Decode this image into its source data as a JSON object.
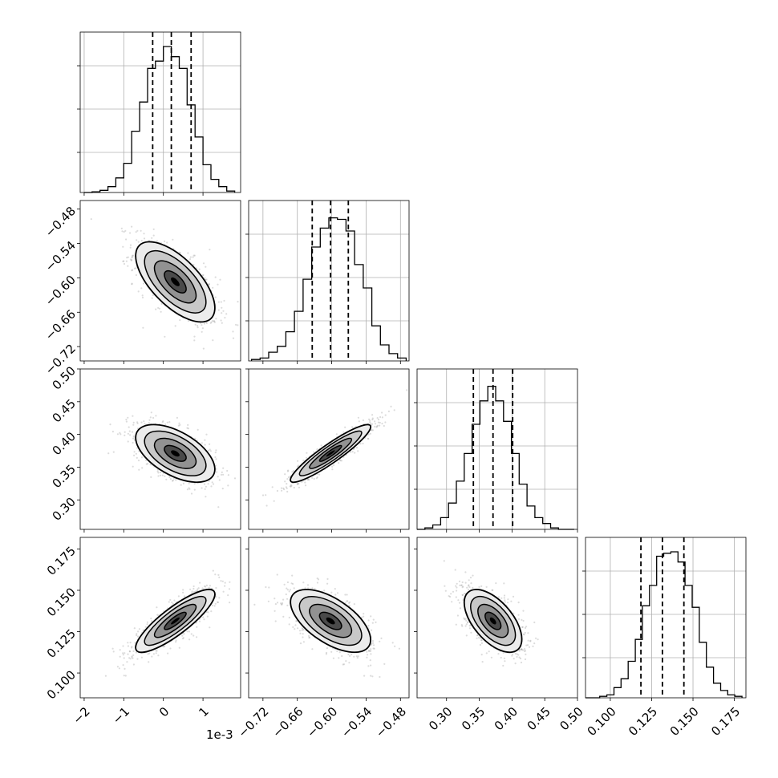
{
  "chart_data": {
    "type": "corner",
    "parameters": 4,
    "axis_offset_label": "1e-3",
    "axes": [
      {
        "range": [
          -2.1,
          1.95
        ],
        "ticks": [
          -2,
          -1,
          0,
          1
        ],
        "tick_labels": [
          "−2",
          "−1",
          "0",
          "1"
        ]
      },
      {
        "range": [
          -0.745,
          -0.465
        ],
        "ticks": [
          -0.72,
          -0.66,
          -0.6,
          -0.54,
          -0.48
        ],
        "tick_labels": [
          "−0.72",
          "−0.66",
          "−0.60",
          "−0.54",
          "−0.48"
        ]
      },
      {
        "range": [
          0.255,
          0.5
        ],
        "ticks": [
          0.3,
          0.35,
          0.4,
          0.45,
          0.5
        ],
        "tick_labels": [
          "0.30",
          "0.35",
          "0.40",
          "0.45",
          "0.50"
        ]
      },
      {
        "range": [
          0.085,
          0.182
        ],
        "ticks": [
          0.1,
          0.125,
          0.15,
          0.175
        ],
        "tick_labels": [
          "0.100",
          "0.125",
          "0.150",
          "0.175"
        ]
      }
    ],
    "marginals": [
      {
        "quantiles": [
          -0.27,
          0.2,
          0.7
        ],
        "bin_edges": [
          -2.0,
          -1.8,
          -1.6,
          -1.4,
          -1.2,
          -1.0,
          -0.8,
          -0.6,
          -0.4,
          -0.2,
          0.0,
          0.2,
          0.4,
          0.6,
          0.8,
          1.0,
          1.2,
          1.4,
          1.6,
          1.8
        ],
        "counts": [
          0.0,
          0.005,
          0.015,
          0.04,
          0.1,
          0.2,
          0.42,
          0.62,
          0.85,
          0.9,
          1.0,
          0.93,
          0.85,
          0.6,
          0.38,
          0.19,
          0.09,
          0.04,
          0.01
        ]
      },
      {
        "quantiles": [
          -0.634,
          -0.602,
          -0.571
        ],
        "bin_edges": [
          -0.74,
          -0.725,
          -0.71,
          -0.695,
          -0.68,
          -0.665,
          -0.65,
          -0.635,
          -0.62,
          -0.605,
          -0.59,
          -0.575,
          -0.56,
          -0.545,
          -0.53,
          -0.515,
          -0.5,
          -0.485,
          -0.47
        ],
        "counts": [
          0.01,
          0.02,
          0.06,
          0.1,
          0.2,
          0.34,
          0.56,
          0.78,
          0.91,
          0.98,
          0.97,
          0.89,
          0.66,
          0.5,
          0.24,
          0.11,
          0.05,
          0.02
        ]
      },
      {
        "quantiles": [
          0.341,
          0.371,
          0.401
        ],
        "bin_edges": [
          0.255,
          0.267,
          0.279,
          0.291,
          0.303,
          0.315,
          0.327,
          0.339,
          0.351,
          0.363,
          0.375,
          0.387,
          0.399,
          0.411,
          0.423,
          0.435,
          0.447,
          0.459,
          0.471,
          0.483,
          0.495
        ],
        "counts": [
          0.0,
          0.01,
          0.03,
          0.08,
          0.18,
          0.33,
          0.52,
          0.72,
          0.88,
          0.98,
          0.88,
          0.74,
          0.52,
          0.31,
          0.16,
          0.08,
          0.04,
          0.01,
          0.0,
          0.0
        ]
      },
      {
        "quantiles": [
          0.1185,
          0.1315,
          0.1445
        ],
        "bin_edges": [
          0.085,
          0.0893,
          0.0936,
          0.0979,
          0.1022,
          0.1065,
          0.1108,
          0.1151,
          0.1194,
          0.1237,
          0.128,
          0.1323,
          0.1366,
          0.1409,
          0.1452,
          0.1495,
          0.1538,
          0.1581,
          0.1624,
          0.1667,
          0.171,
          0.1753,
          0.1796
        ],
        "counts": [
          0.0,
          0.0,
          0.01,
          0.02,
          0.07,
          0.13,
          0.25,
          0.4,
          0.63,
          0.77,
          0.97,
          0.99,
          1.0,
          0.93,
          0.77,
          0.62,
          0.38,
          0.21,
          0.1,
          0.05,
          0.02,
          0.01
        ]
      }
    ],
    "joint": [
      {
        "row": 1,
        "col": 0,
        "center": [
          0.3,
          -0.607
        ],
        "sigma": [
          0.5,
          0.035
        ],
        "rho": -0.65
      },
      {
        "row": 2,
        "col": 0,
        "center": [
          0.3,
          0.371
        ],
        "sigma": [
          0.5,
          0.022
        ],
        "rho": -0.55
      },
      {
        "row": 2,
        "col": 1,
        "center": [
          -0.602,
          0.371
        ],
        "sigma": [
          0.035,
          0.022
        ],
        "rho": 0.92
      },
      {
        "row": 3,
        "col": 0,
        "center": [
          0.3,
          0.1315
        ],
        "sigma": [
          0.5,
          0.0095
        ],
        "rho": 0.85
      },
      {
        "row": 3,
        "col": 1,
        "center": [
          -0.602,
          0.1315
        ],
        "sigma": [
          0.035,
          0.0095
        ],
        "rho": -0.6
      },
      {
        "row": 3,
        "col": 2,
        "center": [
          0.371,
          0.1315
        ],
        "sigma": [
          0.022,
          0.0095
        ],
        "rho": -0.58
      }
    ]
  }
}
